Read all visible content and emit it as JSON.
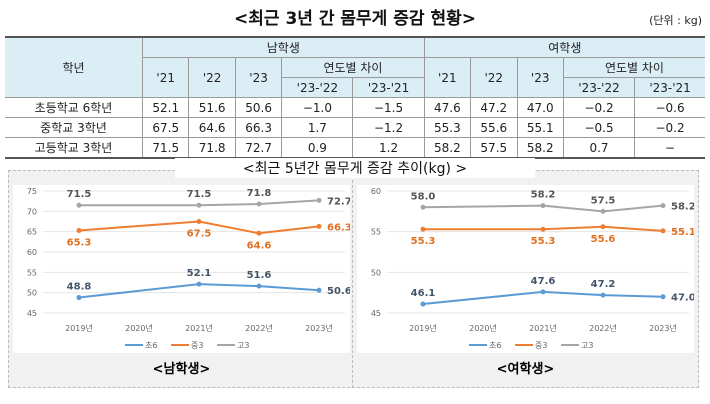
{
  "title": "<최근 3년 간 몸무게 증감 현황>",
  "unit": "(단위 : kg)",
  "table": {
    "grade_header": "학년",
    "male": "남학생",
    "female": "여학생",
    "years": [
      "'21",
      "'22",
      "'23"
    ],
    "diff_header": "연도별 차이",
    "diffs": [
      "'23-'22",
      "'23-'21"
    ],
    "rows": [
      {
        "grade": "초등학교 6학년",
        "m": [
          "52.1",
          "51.6",
          "50.6",
          "−1.0",
          "−1.5"
        ],
        "f": [
          "47.6",
          "47.2",
          "47.0",
          "−0.2",
          "−0.6"
        ]
      },
      {
        "grade": "중학교 3학년",
        "m": [
          "67.5",
          "64.6",
          "66.3",
          "1.7",
          "−1.2"
        ],
        "f": [
          "55.3",
          "55.6",
          "55.1",
          "−0.5",
          "−0.2"
        ]
      },
      {
        "grade": "고등학교 3학년",
        "m": [
          "71.5",
          "71.8",
          "72.7",
          "0.9",
          "1.2"
        ],
        "f": [
          "58.2",
          "57.5",
          "58.2",
          "0.7",
          "−"
        ]
      }
    ]
  },
  "subtitle": "<최근 5년간 몸무게 증감 추이(kg) >",
  "chart_data": [
    {
      "type": "line",
      "label": "<남학생>",
      "categories": [
        "2019년",
        "2020년",
        "2021년",
        "2022년",
        "2023년"
      ],
      "ylim": [
        45,
        75
      ],
      "yticks": [
        45,
        50,
        55,
        60,
        65,
        70,
        75
      ],
      "grid": true,
      "legend": "bottom",
      "series": [
        {
          "name": "초6",
          "color": "#5b9bd5",
          "values": [
            48.8,
            null,
            52.1,
            51.6,
            50.6
          ]
        },
        {
          "name": "중3",
          "color": "#ed7d31",
          "values": [
            65.3,
            null,
            67.5,
            64.6,
            66.3
          ]
        },
        {
          "name": "고3",
          "color": "#a5a5a5",
          "values": [
            71.5,
            null,
            71.5,
            71.8,
            72.7
          ]
        }
      ]
    },
    {
      "type": "line",
      "label": "<여학생>",
      "categories": [
        "2019년",
        "2020년",
        "2021년",
        "2022년",
        "2023년"
      ],
      "ylim": [
        45,
        60
      ],
      "yticks": [
        45,
        50,
        55,
        60
      ],
      "grid": true,
      "legend": "bottom",
      "series": [
        {
          "name": "초6",
          "color": "#5b9bd5",
          "values": [
            46.1,
            null,
            47.6,
            47.2,
            47.0
          ]
        },
        {
          "name": "중3",
          "color": "#ed7d31",
          "values": [
            55.3,
            null,
            55.3,
            55.6,
            55.1
          ]
        },
        {
          "name": "고3",
          "color": "#a5a5a5",
          "values": [
            58.0,
            null,
            58.2,
            57.5,
            58.2
          ]
        }
      ]
    }
  ]
}
